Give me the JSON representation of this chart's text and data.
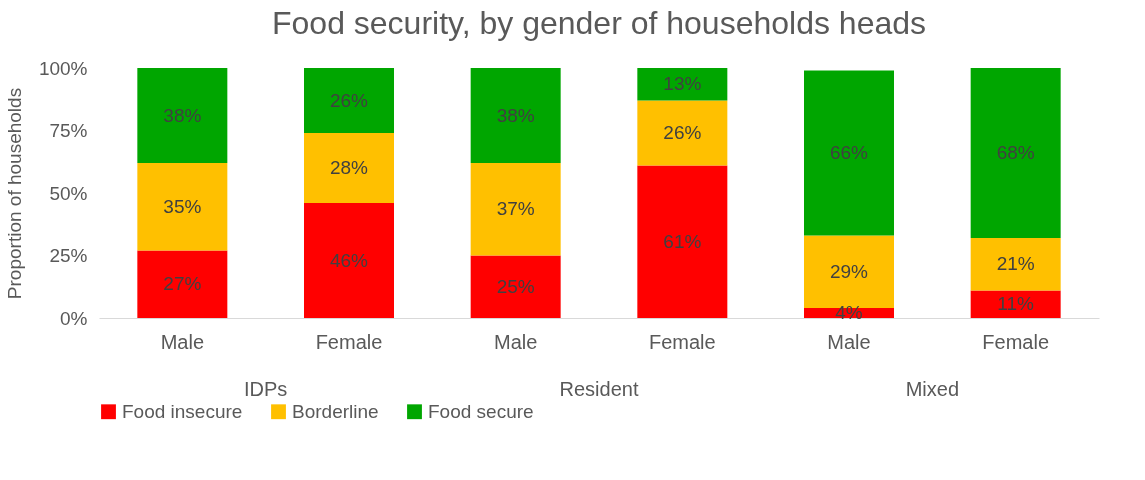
{
  "chart_data": {
    "type": "bar",
    "stacked": true,
    "title": "Food security, by gender of households heads",
    "ylabel": "Proportion of households",
    "categories": [
      "Male",
      "Female",
      "Male",
      "Female",
      "Male",
      "Female"
    ],
    "annotations": [
      "IDPs",
      "Resident",
      "Mixed"
    ],
    "series": [
      {
        "name": "Food insecure",
        "color": "#ff0000",
        "values": [
          27,
          46,
          25,
          61,
          4,
          11
        ],
        "value_labels": [
          "27%",
          "46%",
          "25%",
          "61%",
          "4%",
          "11%"
        ]
      },
      {
        "name": "Borderline",
        "color": "#ffc000",
        "values": [
          35,
          28,
          37,
          26,
          29,
          21
        ],
        "value_labels": [
          "35%",
          "28%",
          "37%",
          "26%",
          "29%",
          "21%"
        ]
      },
      {
        "name": "Food secure",
        "color": "#00a600",
        "values": [
          38,
          26,
          38,
          13,
          66,
          68
        ],
        "value_labels": [
          "38%",
          "26%",
          "38%",
          "13%",
          "66%",
          "68%"
        ]
      }
    ],
    "ylim": [
      0,
      100
    ],
    "yticks": [
      {
        "value": 0,
        "label": "0%"
      },
      {
        "value": 25,
        "label": "25%"
      },
      {
        "value": 50,
        "label": "50%"
      },
      {
        "value": 75,
        "label": "75%"
      },
      {
        "value": 100,
        "label": "100%"
      }
    ],
    "grid": false,
    "legend": "bottom"
  }
}
